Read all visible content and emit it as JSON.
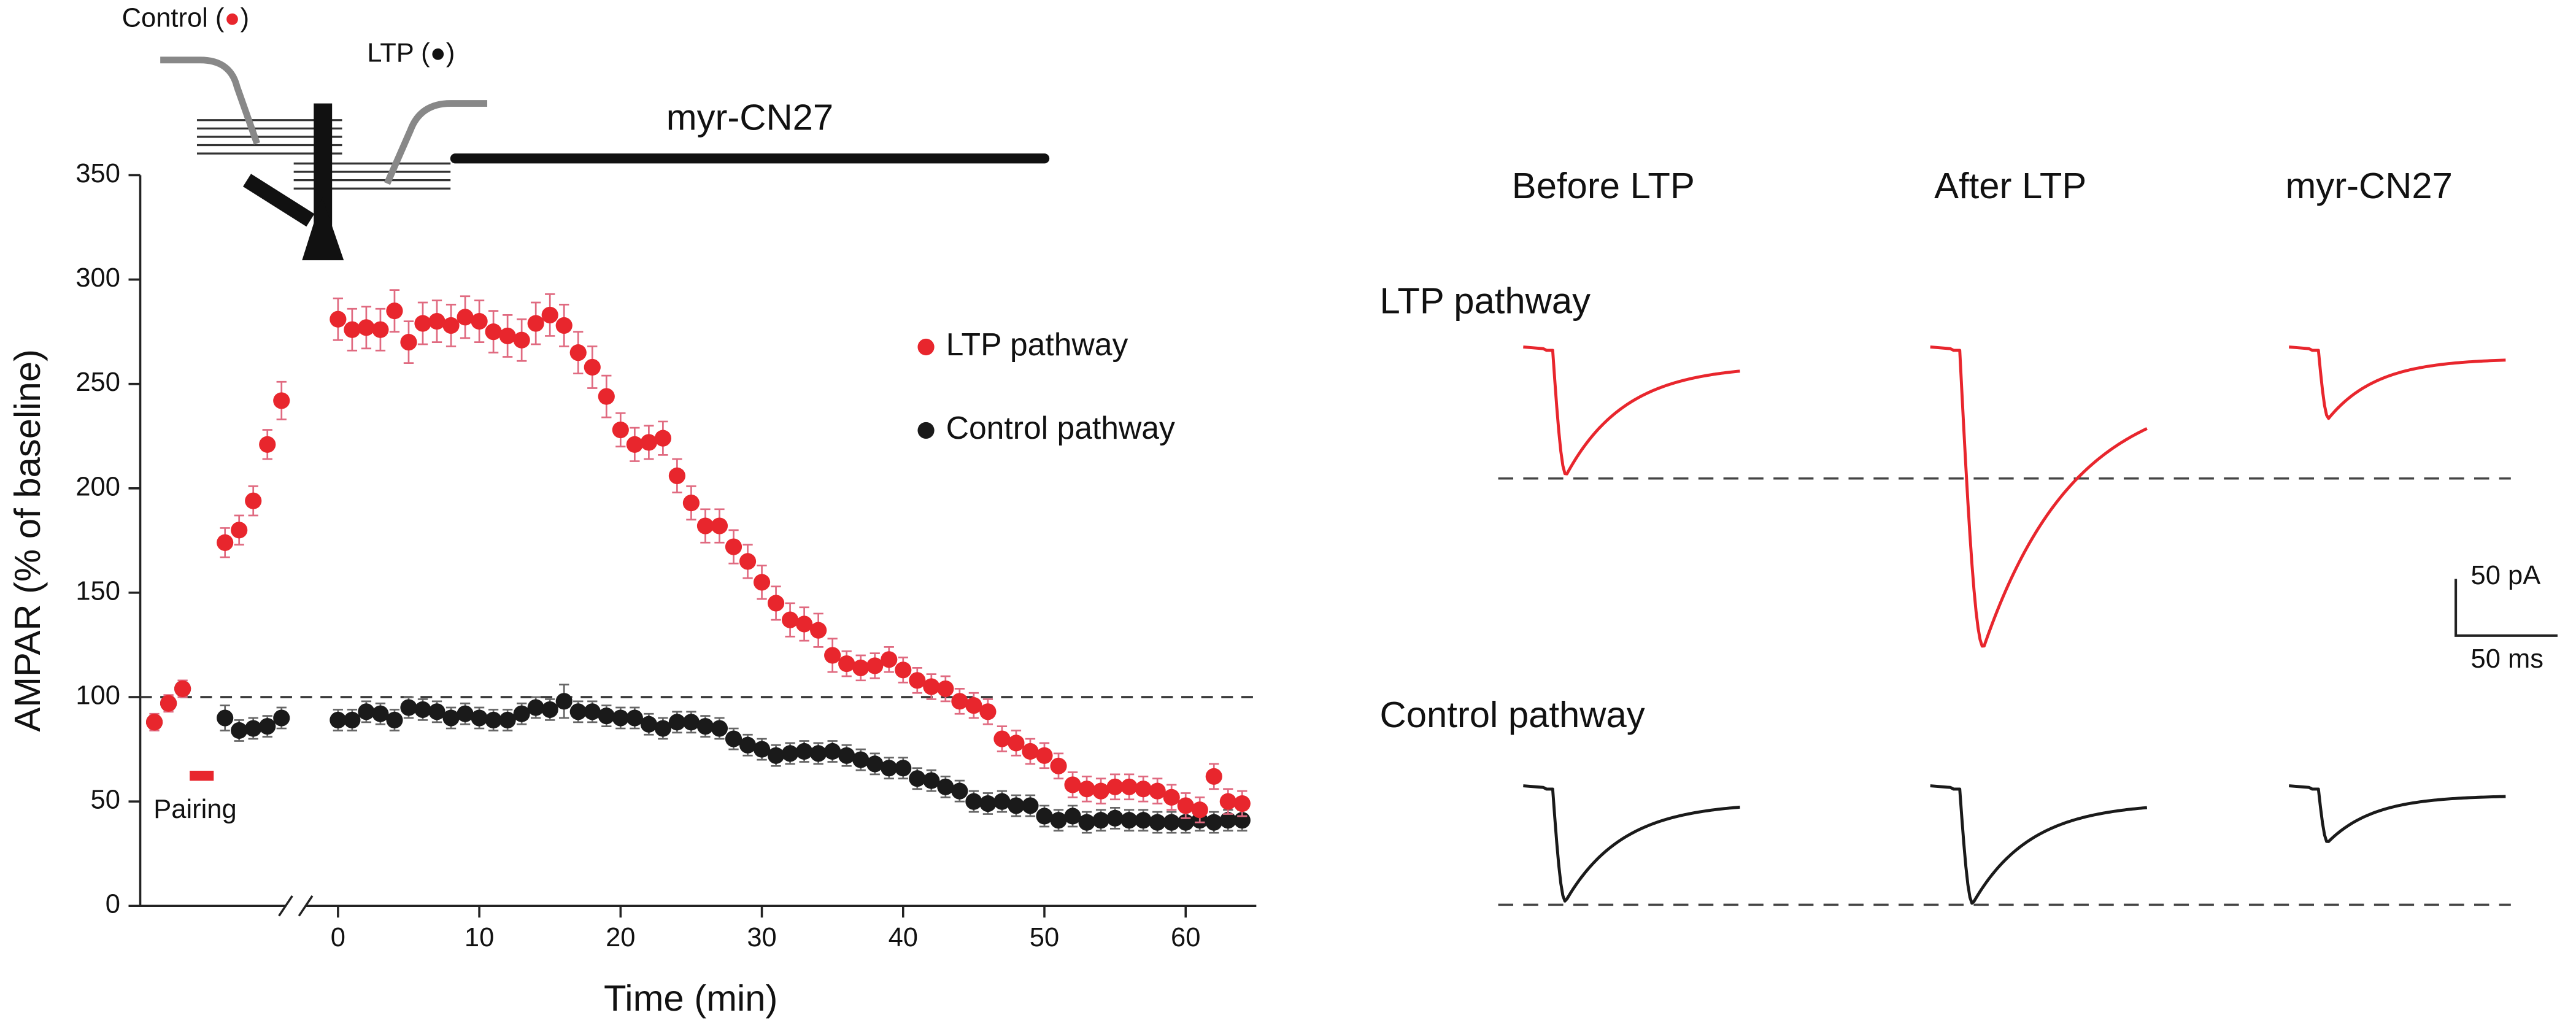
{
  "chart_data": {
    "type": "scatter",
    "x_label": "Time (min)",
    "y_label": "AMPAR (% of baseline)",
    "xlim": [
      -14,
      65
    ],
    "ylim": [
      0,
      350
    ],
    "xticks": [
      0,
      10,
      20,
      30,
      40,
      50,
      60
    ],
    "yticks": [
      0,
      50,
      100,
      150,
      200,
      250,
      300,
      350
    ],
    "axis_break": -3,
    "baseline": 100,
    "pairing": {
      "label": "Pairing",
      "start": -10.5,
      "end": -8.8
    },
    "drug": {
      "label": "myr-CN27",
      "start": 8.3,
      "end": 50
    },
    "schematic": {
      "control_label": [
        "Control (",
        "●",
        ")"
      ],
      "ltp_label": [
        "LTP (",
        "●",
        ")"
      ]
    },
    "x": [
      -13,
      -12,
      -11,
      -8,
      -7,
      -6,
      -5,
      -4,
      0,
      1,
      2,
      3,
      4,
      5,
      6,
      7,
      8,
      9,
      10,
      11,
      12,
      13,
      14,
      15,
      16,
      17,
      18,
      19,
      20,
      21,
      22,
      23,
      24,
      25,
      26,
      27,
      28,
      29,
      30,
      31,
      32,
      33,
      34,
      35,
      36,
      37,
      38,
      39,
      40,
      41,
      42,
      43,
      44,
      45,
      46,
      47,
      48,
      49,
      50,
      51,
      52,
      53,
      54,
      55,
      56,
      57,
      58,
      59,
      60,
      61,
      62,
      63,
      64
    ],
    "series": [
      {
        "name": "LTP pathway",
        "color": "#e8262d",
        "error_color": "#e06a80",
        "values": [
          88,
          97,
          104,
          174,
          180,
          194,
          221,
          242,
          281,
          276,
          277,
          276,
          285,
          270,
          279,
          280,
          278,
          282,
          280,
          275,
          273,
          271,
          279,
          283,
          278,
          265,
          258,
          244,
          228,
          221,
          222,
          224,
          206,
          193,
          182,
          182,
          172,
          165,
          155,
          145,
          137,
          135,
          132,
          120,
          116,
          114,
          115,
          118,
          113,
          108,
          105,
          104,
          98,
          96,
          93,
          80,
          78,
          74,
          72,
          67,
          58,
          56,
          55,
          57,
          57,
          56,
          55,
          52,
          48,
          46,
          62,
          50,
          49
        ],
        "errors": [
          4,
          4,
          4,
          7,
          7,
          7,
          7,
          9,
          10,
          10,
          10,
          10,
          10,
          10,
          10,
          10,
          10,
          10,
          10,
          10,
          10,
          10,
          10,
          10,
          10,
          10,
          10,
          10,
          8,
          8,
          8,
          8,
          8,
          8,
          8,
          8,
          8,
          8,
          8,
          8,
          8,
          8,
          8,
          8,
          6,
          6,
          6,
          6,
          6,
          6,
          6,
          6,
          6,
          6,
          6,
          6,
          6,
          6,
          6,
          6,
          6,
          6,
          6,
          6,
          6,
          6,
          6,
          6,
          6,
          6,
          6,
          6,
          6
        ]
      },
      {
        "name": "Control pathway",
        "color": "#1a1a1a",
        "error_color": "#666666",
        "values": [
          88,
          97,
          104,
          90,
          84,
          85,
          86,
          90,
          89,
          89,
          93,
          92,
          89,
          95,
          94,
          93,
          90,
          92,
          90,
          89,
          89,
          92,
          95,
          94,
          98,
          93,
          93,
          91,
          90,
          90,
          87,
          85,
          88,
          88,
          86,
          85,
          80,
          77,
          75,
          72,
          73,
          74,
          73,
          74,
          72,
          70,
          68,
          66,
          66,
          61,
          60,
          57,
          55,
          50,
          49,
          50,
          48,
          48,
          43,
          41,
          43,
          40,
          41,
          42,
          41,
          41,
          40,
          40,
          40,
          41,
          40,
          41,
          41
        ],
        "errors": [
          3,
          3,
          3,
          6,
          5,
          5,
          5,
          5,
          5,
          5,
          5,
          5,
          5,
          5,
          5,
          5,
          5,
          5,
          5,
          5,
          5,
          5,
          5,
          5,
          8,
          5,
          5,
          5,
          5,
          5,
          5,
          5,
          5,
          5,
          5,
          5,
          5,
          5,
          5,
          5,
          5,
          5,
          5,
          5,
          5,
          5,
          5,
          5,
          5,
          5,
          5,
          5,
          5,
          5,
          5,
          5,
          5,
          5,
          5,
          5,
          5,
          5,
          5,
          5,
          5,
          5,
          5,
          5,
          5,
          5,
          5,
          5,
          5
        ]
      }
    ],
    "traces": {
      "columns": [
        "Before LTP",
        "After LTP",
        "myr-CN27"
      ],
      "rows": [
        {
          "name": "LTP pathway",
          "color": "#e8262d",
          "peaks": [
            110,
            262,
            60
          ]
        },
        {
          "name": "Control pathway",
          "color": "#1a1a1a",
          "peaks": [
            99,
            101,
            47
          ]
        }
      ],
      "scale_bar": {
        "amplitude": {
          "value": 50,
          "label": "50 pA"
        },
        "duration": {
          "value": 50,
          "label": "50 ms"
        }
      }
    }
  }
}
